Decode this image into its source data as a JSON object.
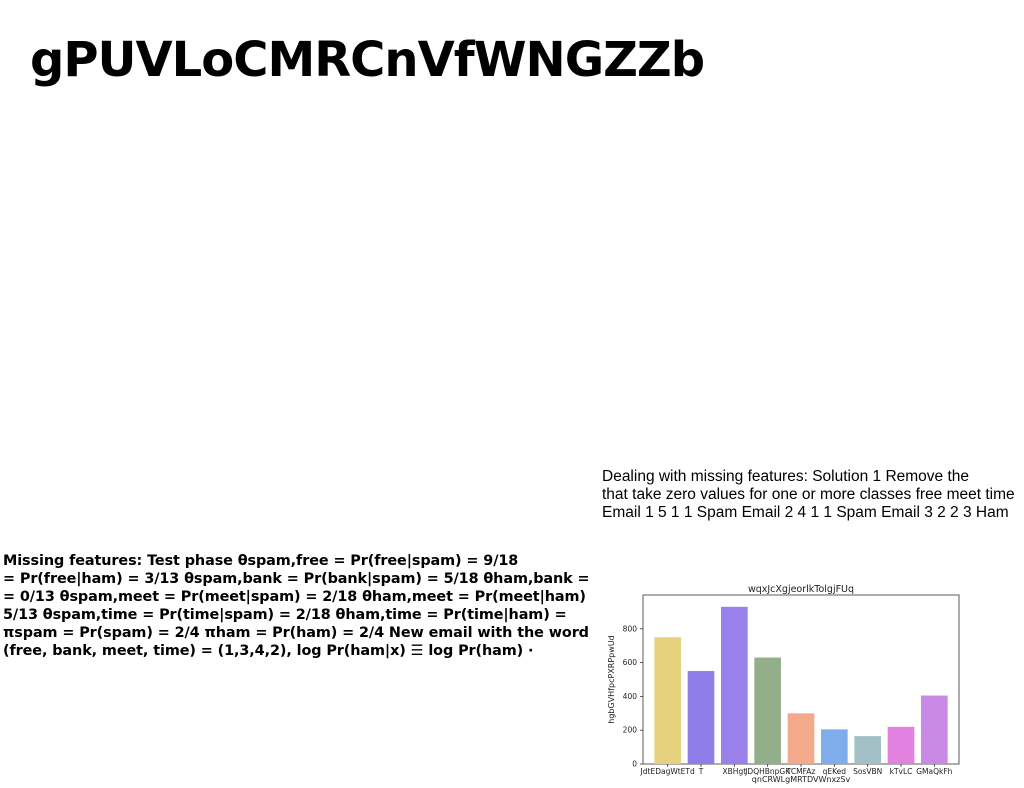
{
  "title": "gPUVLoCMRCnVfWNGZZb",
  "right_text": [
    "Dealing with missing features: Solution 1 Remove the",
    "that take zero values for one or more classes free meet time",
    "Email 1 5 1 1 Spam Email 2 4 1 1 Spam Email 3 2 2 3 Ham"
  ],
  "left_text": [
    "Missing features: Test phase θspam,free = Pr(free|spam) = 9/18",
    "= Pr(free|ham) = 3/13 θspam,bank = Pr(bank|spam) = 5/18 θham,bank =",
    "= 0/13 θspam,meet = Pr(meet|spam) = 2/18 θham,meet = Pr(meet|ham)",
    "5/13 θspam,time = Pr(time|spam) = 2/18 θham,time = Pr(time|ham) =",
    "πspam = Pr(spam) = 2/4 πham = Pr(ham) = 2/4 New email with the word",
    "(free, bank, meet, time) = (1,3,4,2), log Pr(ham|x) ☰ log Pr(ham) ·"
  ],
  "chart_data": {
    "type": "bar",
    "title": "wqxJcXgjeorlkTolgjFUq",
    "xlabel": "qnCRWLgMRTDVWnxzSv",
    "ylabel": "hgbGVHfpcPXRPpwUd",
    "categories": [
      "JdtEDagWtETd",
      "T",
      "XBHgt",
      "JDQHBnpGK",
      "TCMFAz",
      "qEKed",
      "SosVBN",
      "kTvLC",
      "GMaQkFh"
    ],
    "values": [
      750,
      550,
      930,
      630,
      300,
      205,
      165,
      220,
      405
    ],
    "colors": [
      "#e6d27e",
      "#8f7ee9",
      "#9a80ea",
      "#93af89",
      "#f4a98a",
      "#7fadec",
      "#a3c0c6",
      "#e281e0",
      "#c98ae6"
    ],
    "ylim": [
      0,
      1000
    ],
    "yticks": [
      0,
      200,
      400,
      600,
      800
    ],
    "grid": false,
    "legend": "none"
  }
}
